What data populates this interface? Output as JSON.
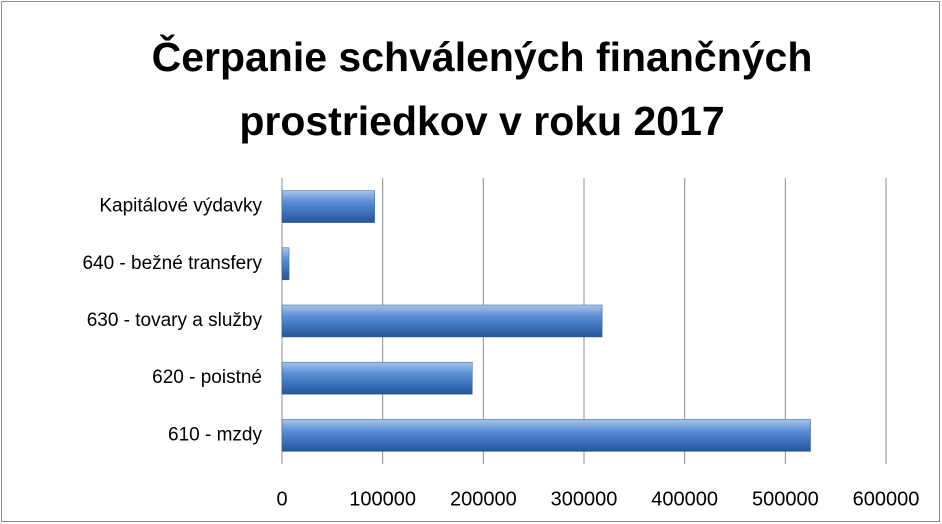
{
  "chart_data": {
    "type": "bar",
    "orientation": "horizontal",
    "title": [
      "Čerpanie  schválených finančných",
      "prostriedkov v roku 2017"
    ],
    "categories": [
      "Kapitálové výdavky",
      "640 - bežné transfery",
      "630 - tovary a služby",
      "620 - poistné",
      "610 - mzdy"
    ],
    "values": [
      92000,
      7000,
      318000,
      189000,
      525000
    ],
    "color": "#4a7ebb",
    "xlim": [
      0,
      600000
    ],
    "xticks": [
      0,
      100000,
      200000,
      300000,
      400000,
      500000,
      600000
    ],
    "grid": true
  }
}
